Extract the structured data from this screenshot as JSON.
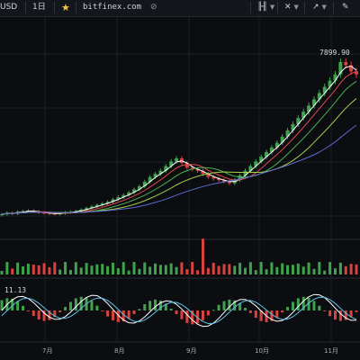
{
  "toolbar": {
    "symbol_partial": "USD",
    "interval": "1日",
    "domain": "bitfinex.com",
    "link_icon_glyph": "⊘",
    "indicators_icon_glyph": "╟╢",
    "tools_icon_glyph": "✕",
    "draw_icon_glyph": "↗",
    "pencil_icon_glyph": "✎",
    "star_glyph": "★"
  },
  "price_chart": {
    "high_label": "7899.90"
  },
  "oscillator": {
    "value_label": "11.13"
  },
  "xaxis": {
    "labels": [
      "7月",
      "8月",
      "9月",
      "10月",
      "11月"
    ]
  },
  "chart_data": {
    "type": "candlestick",
    "title": "",
    "x": [
      "7月",
      "8月",
      "9月",
      "10月",
      "11月"
    ],
    "price_close": [
      3000,
      3050,
      3020,
      3080,
      3100,
      3120,
      3090,
      3050,
      3040,
      3020,
      3010,
      3030,
      3060,
      3080,
      3100,
      3150,
      3200,
      3250,
      3300,
      3350,
      3400,
      3480,
      3550,
      3620,
      3700,
      3800,
      3900,
      4050,
      4200,
      4300,
      4400,
      4550,
      4700,
      4800,
      4650,
      4500,
      4450,
      4400,
      4300,
      4200,
      4150,
      4100,
      4050,
      4000,
      4100,
      4250,
      4400,
      4550,
      4700,
      4850,
      5000,
      5150,
      5300,
      5500,
      5700,
      5900,
      6100,
      6300,
      6500,
      6700,
      6900,
      7100,
      7300,
      7500,
      7899.9,
      7800,
      7600,
      7500
    ],
    "moving_averages": [
      {
        "color": "#ffffff"
      },
      {
        "color": "#e3484c"
      },
      {
        "color": "#4caf50"
      },
      {
        "color": "#a3d14b"
      },
      {
        "color": "#5b6ad0"
      }
    ],
    "oscillator_value": 11.13
  }
}
